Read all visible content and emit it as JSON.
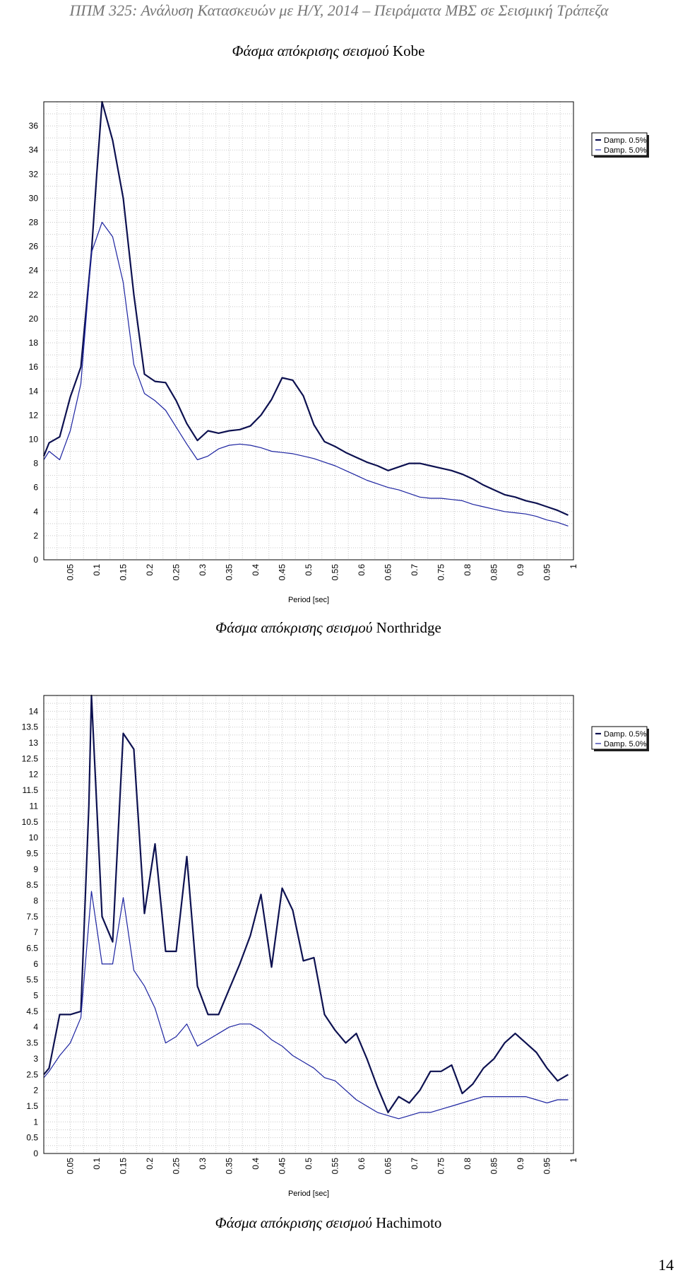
{
  "header": {
    "text": "ΠΠΜ 325: Ανάλυση Κατασκευών με Η/Υ, 2014 – Πειράματα ΜΒΣ σε Σεισμική Τράπεζα"
  },
  "figures": [
    {
      "caption_prefix": "Φάσμα απόκρισης σεισμού",
      "caption_name": "Kobe"
    },
    {
      "caption_prefix": "Φάσμα απόκρισης σεισμού",
      "caption_name": "Northridge"
    },
    {
      "caption_prefix": "Φάσμα απόκρισης σεισμού",
      "caption_name": "Hachimoto"
    }
  ],
  "page_number": "14",
  "colors": {
    "series_1": "#0d1150",
    "series_2": "#1c23a0",
    "grid": "#c8c8c8",
    "frame": "#000000"
  },
  "chart_data": [
    {
      "type": "line",
      "title": "",
      "xlabel": "Period [sec]",
      "ylabel": "",
      "xlim": [
        0,
        1
      ],
      "ylim": [
        0,
        38
      ],
      "x_ticks": [
        "0.05",
        "0.1",
        "0.15",
        "0.2",
        "0.25",
        "0.3",
        "0.35",
        "0.4",
        "0.45",
        "0.5",
        "0.55",
        "0.6",
        "0.65",
        "0.7",
        "0.75",
        "0.8",
        "0.85",
        "0.9",
        "0.95",
        "1"
      ],
      "y_ticks": [
        "0",
        "2",
        "4",
        "6",
        "8",
        "10",
        "12",
        "14",
        "16",
        "18",
        "20",
        "22",
        "24",
        "26",
        "28",
        "30",
        "32",
        "34",
        "36"
      ],
      "grid": true,
      "legend": "top-right",
      "series": [
        {
          "name": "Damp. 0.5%",
          "color": "#0d1150",
          "width": 2.2,
          "x": [
            0,
            0.01,
            0.03,
            0.05,
            0.07,
            0.09,
            0.1,
            0.11,
            0.13,
            0.15,
            0.17,
            0.19,
            0.21,
            0.23,
            0.25,
            0.27,
            0.29,
            0.31,
            0.33,
            0.35,
            0.37,
            0.39,
            0.41,
            0.43,
            0.45,
            0.47,
            0.49,
            0.51,
            0.53,
            0.55,
            0.57,
            0.59,
            0.61,
            0.63,
            0.65,
            0.67,
            0.69,
            0.71,
            0.73,
            0.75,
            0.77,
            0.79,
            0.81,
            0.83,
            0.85,
            0.87,
            0.89,
            0.91,
            0.93,
            0.95,
            0.97,
            0.99
          ],
          "y": [
            8.6,
            9.7,
            10.2,
            13.5,
            16,
            25.5,
            32,
            38,
            34.8,
            30,
            22,
            15.4,
            14.8,
            14.7,
            13.2,
            11.3,
            9.9,
            10.7,
            10.5,
            10.7,
            10.8,
            11.1,
            12,
            13.3,
            15.1,
            14.9,
            13.6,
            11.2,
            9.8,
            9.4,
            8.9,
            8.5,
            8.1,
            7.8,
            7.4,
            7.7,
            8,
            8,
            7.8,
            7.6,
            7.4,
            7.1,
            6.7,
            6.2,
            5.8,
            5.4,
            5.2,
            4.9,
            4.7,
            4.4,
            4.1,
            3.7
          ]
        },
        {
          "name": "Damp. 5.0%",
          "color": "#1c23a0",
          "width": 1.2,
          "x": [
            0,
            0.01,
            0.03,
            0.05,
            0.07,
            0.09,
            0.11,
            0.13,
            0.15,
            0.17,
            0.19,
            0.21,
            0.23,
            0.25,
            0.27,
            0.29,
            0.31,
            0.33,
            0.35,
            0.37,
            0.39,
            0.41,
            0.43,
            0.45,
            0.47,
            0.49,
            0.51,
            0.53,
            0.55,
            0.57,
            0.59,
            0.61,
            0.63,
            0.65,
            0.67,
            0.69,
            0.71,
            0.73,
            0.75,
            0.77,
            0.79,
            0.81,
            0.83,
            0.85,
            0.87,
            0.89,
            0.91,
            0.93,
            0.95,
            0.97,
            0.99
          ],
          "y": [
            8.3,
            9,
            8.3,
            10.7,
            14.6,
            25.5,
            28,
            26.8,
            23,
            16.2,
            13.8,
            13.2,
            12.4,
            11,
            9.6,
            8.3,
            8.6,
            9.2,
            9.5,
            9.6,
            9.5,
            9.3,
            9,
            8.9,
            8.8,
            8.6,
            8.4,
            8.1,
            7.8,
            7.4,
            7,
            6.6,
            6.3,
            6,
            5.8,
            5.5,
            5.2,
            5.1,
            5.1,
            5,
            4.9,
            4.6,
            4.4,
            4.2,
            4,
            3.9,
            3.8,
            3.6,
            3.3,
            3.1,
            2.8
          ]
        }
      ]
    },
    {
      "type": "line",
      "title": "",
      "xlabel": "Period [sec]",
      "ylabel": "",
      "xlim": [
        0,
        1
      ],
      "ylim": [
        0,
        14.5
      ],
      "x_ticks": [
        "0.05",
        "0.1",
        "0.15",
        "0.2",
        "0.25",
        "0.3",
        "0.35",
        "0.4",
        "0.45",
        "0.5",
        "0.55",
        "0.6",
        "0.65",
        "0.7",
        "0.75",
        "0.8",
        "0.85",
        "0.9",
        "0.95",
        "1"
      ],
      "y_ticks": [
        "0",
        "0.5",
        "1",
        "1.5",
        "2",
        "2.5",
        "3",
        "3.5",
        "4",
        "4.5",
        "5",
        "5.5",
        "6",
        "6.5",
        "7",
        "7.5",
        "8",
        "8.5",
        "9",
        "9.5",
        "10",
        "10.5",
        "11",
        "11.5",
        "12",
        "12.5",
        "13",
        "13.5",
        "14"
      ],
      "grid": true,
      "legend": "top-right",
      "series": [
        {
          "name": "Damp. 0.5%",
          "color": "#0d1150",
          "width": 2.2,
          "x": [
            0,
            0.01,
            0.03,
            0.05,
            0.07,
            0.085,
            0.09,
            0.11,
            0.13,
            0.15,
            0.17,
            0.19,
            0.21,
            0.23,
            0.25,
            0.27,
            0.29,
            0.31,
            0.33,
            0.35,
            0.37,
            0.39,
            0.41,
            0.43,
            0.45,
            0.47,
            0.49,
            0.51,
            0.53,
            0.55,
            0.57,
            0.59,
            0.61,
            0.63,
            0.65,
            0.67,
            0.69,
            0.71,
            0.73,
            0.75,
            0.77,
            0.79,
            0.81,
            0.83,
            0.85,
            0.87,
            0.89,
            0.91,
            0.93,
            0.95,
            0.97,
            0.99
          ],
          "y": [
            2.5,
            2.7,
            4.4,
            4.4,
            4.5,
            11,
            14.5,
            7.5,
            6.7,
            13.3,
            12.8,
            7.6,
            9.8,
            6.4,
            6.4,
            9.4,
            5.3,
            4.4,
            4.4,
            5.2,
            6,
            6.9,
            8.2,
            5.9,
            8.4,
            7.7,
            6.1,
            6.2,
            4.4,
            3.9,
            3.5,
            3.8,
            3,
            2.1,
            1.3,
            1.8,
            1.6,
            2,
            2.6,
            2.6,
            2.8,
            1.9,
            2.2,
            2.7,
            3,
            3.5,
            3.8,
            3.5,
            3.2,
            2.7,
            2.3,
            2.5
          ]
        },
        {
          "name": "Damp. 5.0%",
          "color": "#1c23a0",
          "width": 1.2,
          "x": [
            0,
            0.01,
            0.03,
            0.05,
            0.07,
            0.09,
            0.11,
            0.13,
            0.15,
            0.17,
            0.19,
            0.21,
            0.23,
            0.25,
            0.27,
            0.29,
            0.31,
            0.33,
            0.35,
            0.37,
            0.39,
            0.41,
            0.43,
            0.45,
            0.47,
            0.49,
            0.51,
            0.53,
            0.55,
            0.57,
            0.59,
            0.61,
            0.63,
            0.65,
            0.67,
            0.69,
            0.71,
            0.73,
            0.75,
            0.77,
            0.79,
            0.81,
            0.83,
            0.85,
            0.87,
            0.89,
            0.91,
            0.93,
            0.95,
            0.97,
            0.99
          ],
          "y": [
            2.4,
            2.6,
            3.1,
            3.5,
            4.3,
            8.3,
            6,
            6,
            8.1,
            5.8,
            5.3,
            4.6,
            3.5,
            3.7,
            4.1,
            3.4,
            3.6,
            3.8,
            4,
            4.1,
            4.1,
            3.9,
            3.6,
            3.4,
            3.1,
            2.9,
            2.7,
            2.4,
            2.3,
            2,
            1.7,
            1.5,
            1.3,
            1.2,
            1.1,
            1.2,
            1.3,
            1.3,
            1.4,
            1.5,
            1.6,
            1.7,
            1.8,
            1.8,
            1.8,
            1.8,
            1.8,
            1.7,
            1.6,
            1.7,
            1.7
          ]
        }
      ]
    }
  ]
}
